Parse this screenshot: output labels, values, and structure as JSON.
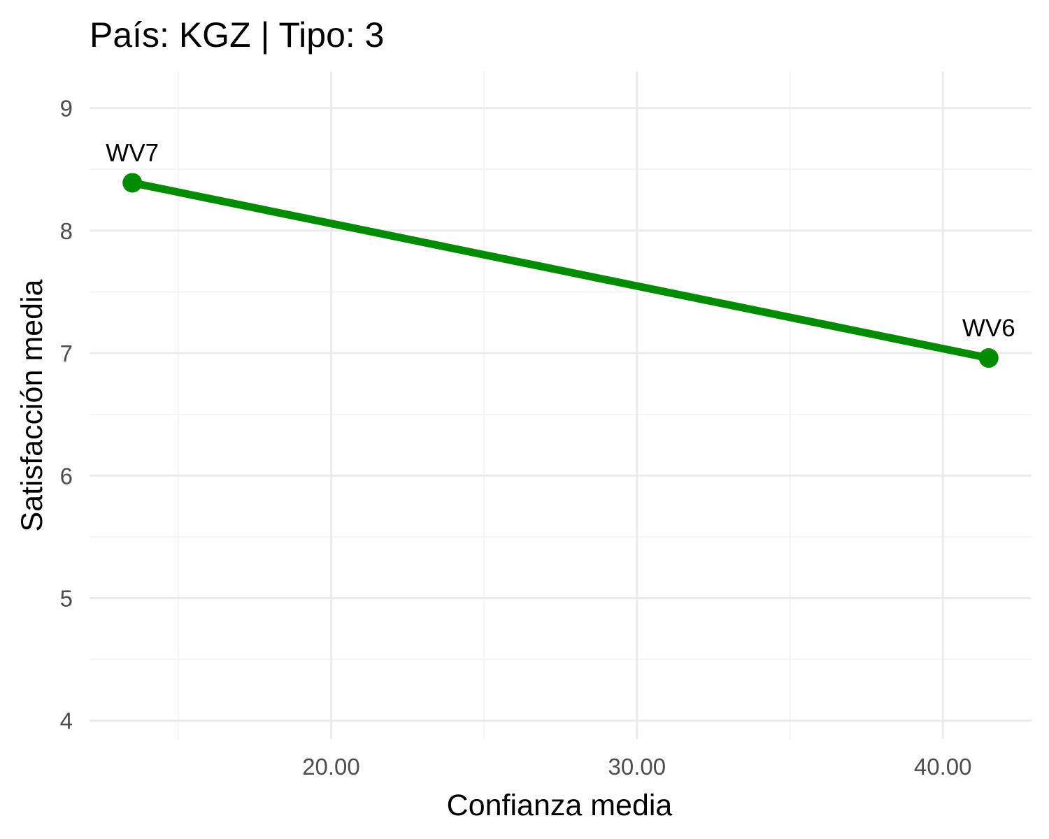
{
  "chart_data": {
    "type": "line",
    "title": "País: KGZ | Tipo: 3",
    "xlabel": "Confianza media",
    "ylabel": "Satisfacción media",
    "xlim": [
      12.1,
      42.9
    ],
    "ylim": [
      3.85,
      9.3
    ],
    "x_ticks": [
      20,
      30,
      40
    ],
    "x_tick_labels": [
      "20.00",
      "30.00",
      "40.00"
    ],
    "x_minor_ticks": [
      15,
      25,
      35
    ],
    "y_ticks": [
      4,
      5,
      6,
      7,
      8,
      9
    ],
    "y_tick_labels": [
      "4",
      "5",
      "6",
      "7",
      "8",
      "9"
    ],
    "y_minor_ticks": [
      4.5,
      5.5,
      6.5,
      7.5,
      8.5
    ],
    "grid": true,
    "legend": "none",
    "series": [
      {
        "color": "#008b00",
        "points": [
          {
            "label": "WV7",
            "x": 13.5,
            "y": 8.39
          },
          {
            "label": "WV6",
            "x": 41.5,
            "y": 6.96
          }
        ]
      }
    ]
  }
}
